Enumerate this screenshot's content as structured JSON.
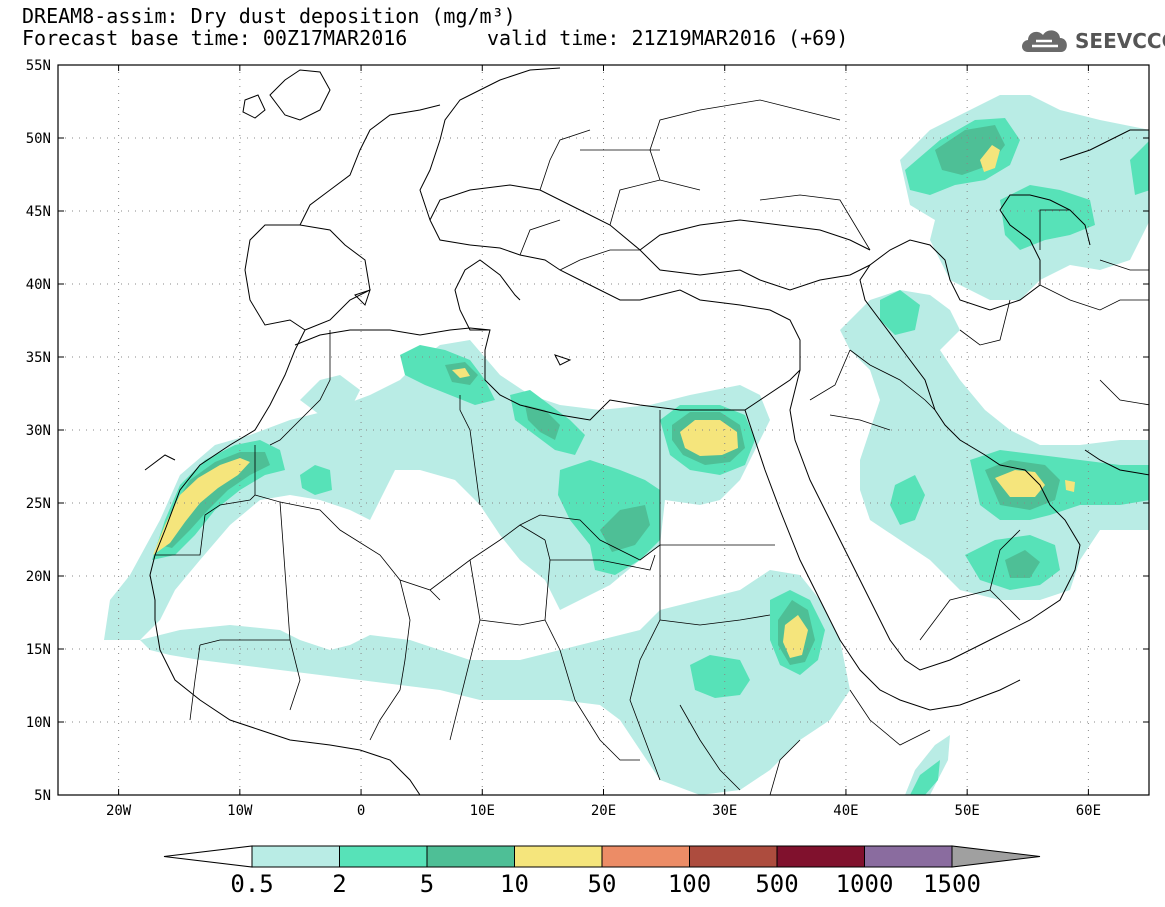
{
  "title": {
    "line1": "DREAM8-assim: Dry dust deposition (mg/m³)",
    "line2": "Forecast base time: 00Z17MAR2016",
    "valid": "valid time: 21Z19MAR2016 (+69)"
  },
  "logo": {
    "text": "SEEVCCC",
    "icon": "cloud-icon"
  },
  "map": {
    "lat_labels": [
      "55N",
      "50N",
      "45N",
      "40N",
      "35N",
      "30N",
      "25N",
      "20N",
      "15N",
      "10N",
      "5N"
    ],
    "lon_labels": [
      "20W",
      "10W",
      "0",
      "10E",
      "20E",
      "30E",
      "40E",
      "50E",
      "60E"
    ],
    "lat_values": [
      55,
      50,
      45,
      40,
      35,
      30,
      25,
      20,
      15,
      10,
      5
    ],
    "lon_values": [
      -20,
      -10,
      0,
      10,
      20,
      30,
      40,
      50,
      60
    ],
    "lon_range": [
      -25,
      65
    ],
    "lat_range": [
      5,
      55
    ],
    "grid": "dotted"
  },
  "colorbar": {
    "labels": [
      "0.5",
      "2",
      "5",
      "10",
      "50",
      "100",
      "500",
      "1000",
      "1500"
    ],
    "colors": [
      "#b9ece5",
      "#57e2b8",
      "#4ebf96",
      "#f5e57c",
      "#ec8c66",
      "#ad4c3e",
      "#80112d",
      "#8a6c9f"
    ],
    "over_color": "#a0a0a0",
    "under_color": "#ffffff"
  },
  "palette": {
    "level1": "#b9ece5",
    "level2": "#57e2b8",
    "level3": "#4ebf96",
    "level4": "#f5e57c"
  }
}
